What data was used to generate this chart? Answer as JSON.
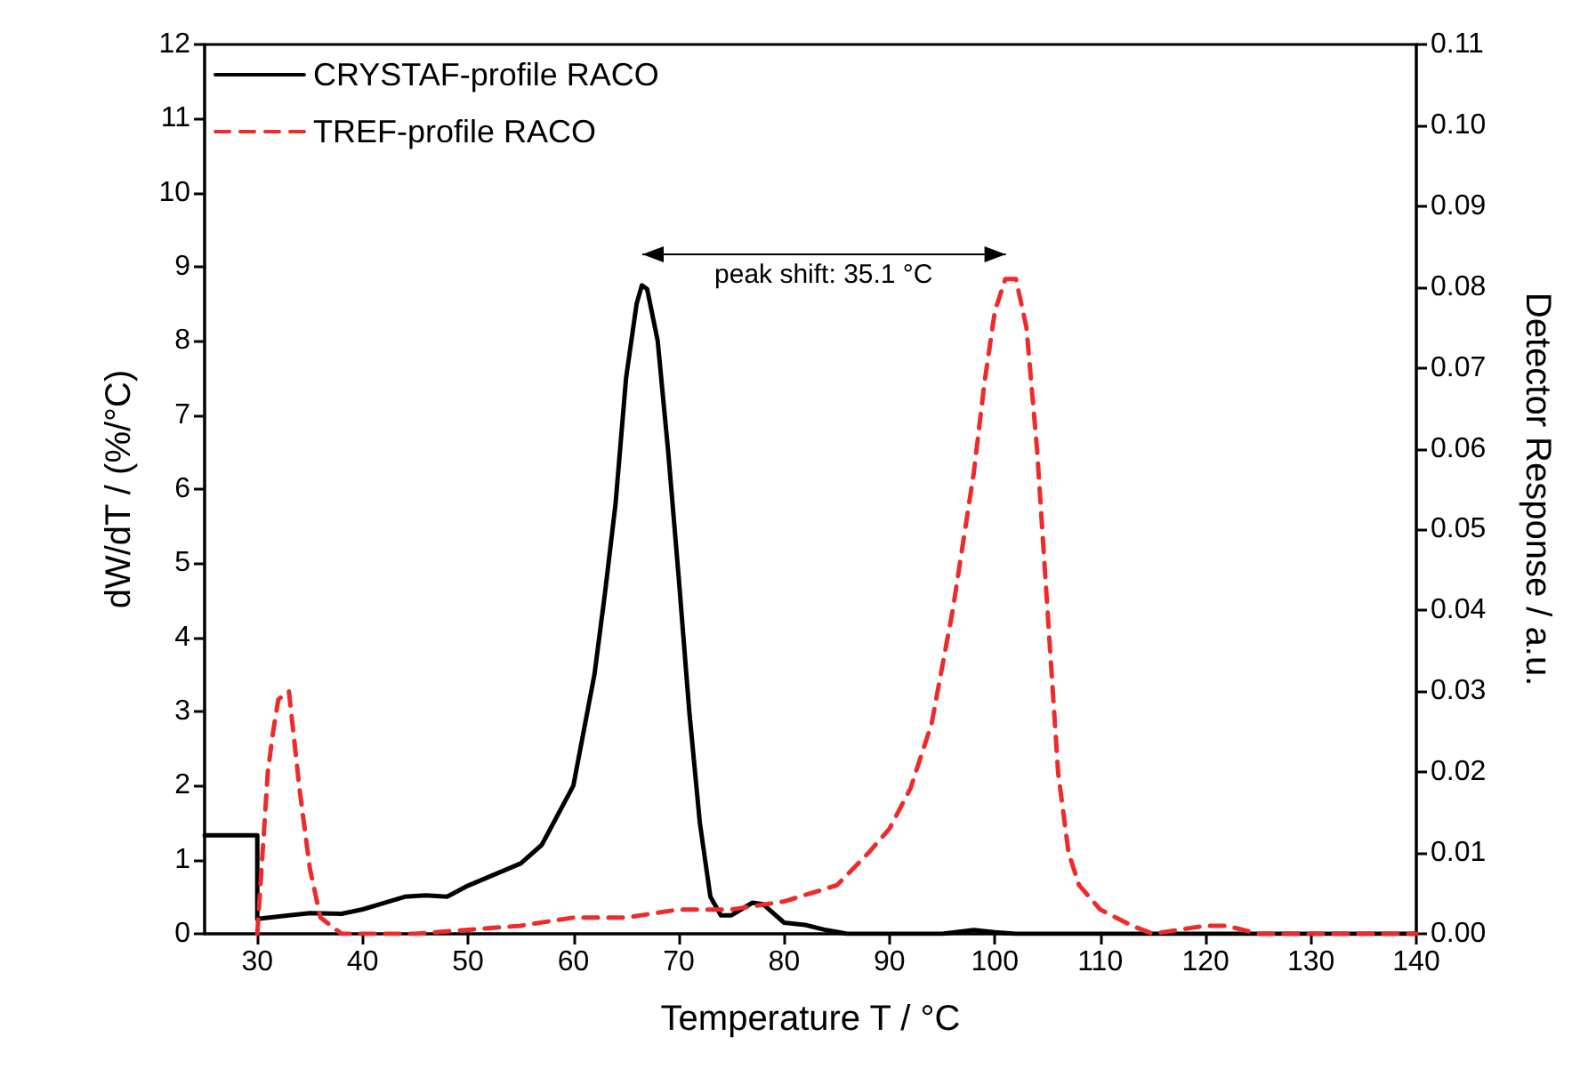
{
  "chart_data": {
    "type": "line",
    "xlabel": "Temperature T / °C",
    "ylabel": "dW/dT / (%/°C)",
    "y2label": "Detector Response / a.u.",
    "xlim": [
      25,
      140
    ],
    "xticks": [
      30,
      40,
      50,
      60,
      70,
      80,
      90,
      100,
      110,
      120,
      130,
      140
    ],
    "ylim": [
      0,
      12
    ],
    "yticks": [
      0,
      1,
      2,
      3,
      4,
      5,
      6,
      7,
      8,
      9,
      10,
      11,
      12
    ],
    "y2lim": [
      0,
      0.11
    ],
    "y2ticks": [
      {
        "value": 0,
        "label": "0.00"
      },
      {
        "value": 0.01,
        "label": "0.01"
      },
      {
        "value": 0.02,
        "label": "0.02"
      },
      {
        "value": 0.03,
        "label": "0.03"
      },
      {
        "value": 0.04,
        "label": "0.04"
      },
      {
        "value": 0.05,
        "label": "0.05"
      },
      {
        "value": 0.06,
        "label": "0.06"
      },
      {
        "value": 0.07,
        "label": "0.07"
      },
      {
        "value": 0.08,
        "label": "0.08"
      },
      {
        "value": 0.09,
        "label": "0.09"
      },
      {
        "value": 0.1,
        "label": "0.10"
      },
      {
        "value": 0.11,
        "label": "0.11"
      }
    ],
    "legend": "top left",
    "grid": false,
    "marker": "none",
    "annotations": [
      "peak shift: 35.1 °C"
    ],
    "series": [
      {
        "name": "CRYSTAF-profile RACO",
        "color": "#000000",
        "line_style": "solid",
        "x": [
          25,
          30,
          30,
          33,
          35,
          38,
          40,
          44,
          46,
          48,
          50,
          55,
          57,
          60,
          62,
          63,
          64,
          65,
          66,
          66.5,
          67,
          68,
          69,
          70,
          71,
          72,
          73,
          74,
          75,
          77,
          78,
          80,
          82,
          84,
          86,
          95,
          98,
          100,
          102,
          140
        ],
        "values": [
          1.33,
          1.33,
          0.2,
          0.25,
          0.28,
          0.27,
          0.33,
          0.5,
          0.52,
          0.5,
          0.65,
          0.95,
          1.2,
          2.0,
          3.5,
          4.6,
          5.8,
          7.5,
          8.5,
          8.75,
          8.7,
          8.0,
          6.5,
          4.8,
          3.0,
          1.5,
          0.5,
          0.25,
          0.25,
          0.42,
          0.4,
          0.15,
          0.12,
          0.05,
          0,
          0,
          0.05,
          0.02,
          0,
          0
        ]
      },
      {
        "name": "TREF-profile RACO",
        "color": "#ee2a2a",
        "line_style": "dashed",
        "axis": "y2",
        "x": [
          30,
          31,
          31.5,
          32,
          33,
          34,
          35,
          36,
          38,
          45,
          55,
          60,
          65,
          70,
          75,
          80,
          85,
          88,
          90,
          92,
          94,
          96,
          98,
          99,
          100,
          101,
          102,
          103,
          104,
          105,
          106,
          107,
          108,
          110,
          113,
          115,
          120,
          122,
          125,
          140
        ],
        "values": [
          0,
          0.02,
          0.025,
          0.029,
          0.03,
          0.018,
          0.008,
          0.002,
          0,
          0,
          0.001,
          0.002,
          0.002,
          0.003,
          0.003,
          0.004,
          0.006,
          0.01,
          0.013,
          0.018,
          0.026,
          0.04,
          0.057,
          0.068,
          0.077,
          0.081,
          0.081,
          0.075,
          0.06,
          0.04,
          0.02,
          0.01,
          0.006,
          0.003,
          0.001,
          0,
          0.001,
          0.001,
          0,
          0
        ]
      }
    ]
  }
}
